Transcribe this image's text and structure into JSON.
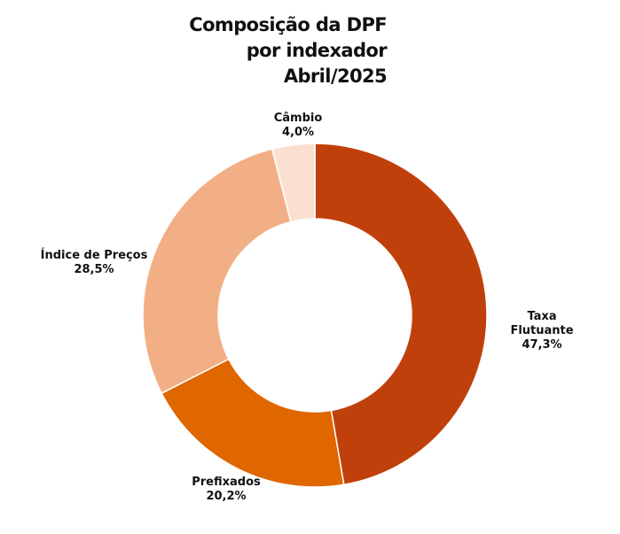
{
  "chart_data": {
    "type": "pie",
    "variant": "donut",
    "title_lines": [
      "Composição da DPF",
      "por indexador",
      "Abril/2025"
    ],
    "slices": [
      {
        "name": "Taxa Flutuante",
        "label_lines": [
          "Taxa",
          "Flutuante"
        ],
        "value": 47.3,
        "value_label": "47,3%",
        "color": "#C0400C"
      },
      {
        "name": "Prefixados",
        "label_lines": [
          "Prefixados"
        ],
        "value": 20.2,
        "value_label": "20,2%",
        "color": "#E06600"
      },
      {
        "name": "Índice de Preços",
        "label_lines": [
          "Índice de Preços"
        ],
        "value": 28.5,
        "value_label": "28,5%",
        "color": "#F2AF86"
      },
      {
        "name": "Câmbio",
        "label_lines": [
          "Câmbio"
        ],
        "value": 4.0,
        "value_label": "4,0%",
        "color": "#FBE0D2"
      }
    ]
  }
}
